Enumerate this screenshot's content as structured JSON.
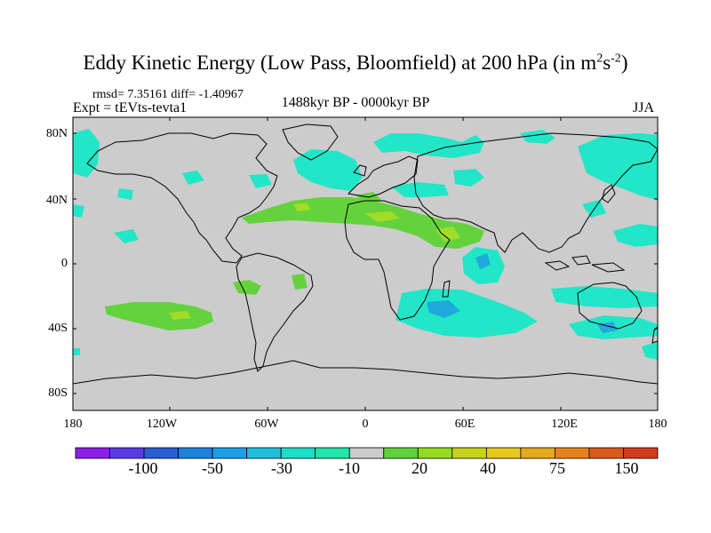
{
  "title": {
    "main": "Eddy Kinetic Energy (Low Pass, Bloomfield) at 200 hPa (in m",
    "sup1": "2",
    "mid": "s",
    "sup2": "-2",
    "end": ")"
  },
  "stats": "rmsd= 7.35161 diff= -1.40967",
  "experiment": "Expt = tEVts-tevta1",
  "period": "1488kyr BP - 0000kyr BP",
  "season": "JJA",
  "lat_labels": [
    "80N",
    "40N",
    "0",
    "40S",
    "80S"
  ],
  "lon_labels": [
    "180",
    "120W",
    "60W",
    "0",
    "60E",
    "120E",
    "180"
  ],
  "colorbar": {
    "labels": [
      "-100",
      "-50",
      "-30",
      "-10",
      "20",
      "40",
      "75",
      "150"
    ],
    "colors": [
      "#8c1ee6",
      "#5a3ce6",
      "#2a5ed2",
      "#1e82dc",
      "#1ea0e6",
      "#1ec0dc",
      "#1edcc8",
      "#22e6aa",
      "#cccccc",
      "#60d23c",
      "#96dc1e",
      "#c8d21e",
      "#e6c81e",
      "#e6aa1e",
      "#e6821e",
      "#dc5a1e",
      "#d23c1e"
    ]
  },
  "colors": {
    "land_bg": "#cccccc",
    "cyan": "#22e6c8",
    "green": "#64d23c",
    "yellowgreen": "#a0dc28",
    "blue": "#1eaadc"
  }
}
